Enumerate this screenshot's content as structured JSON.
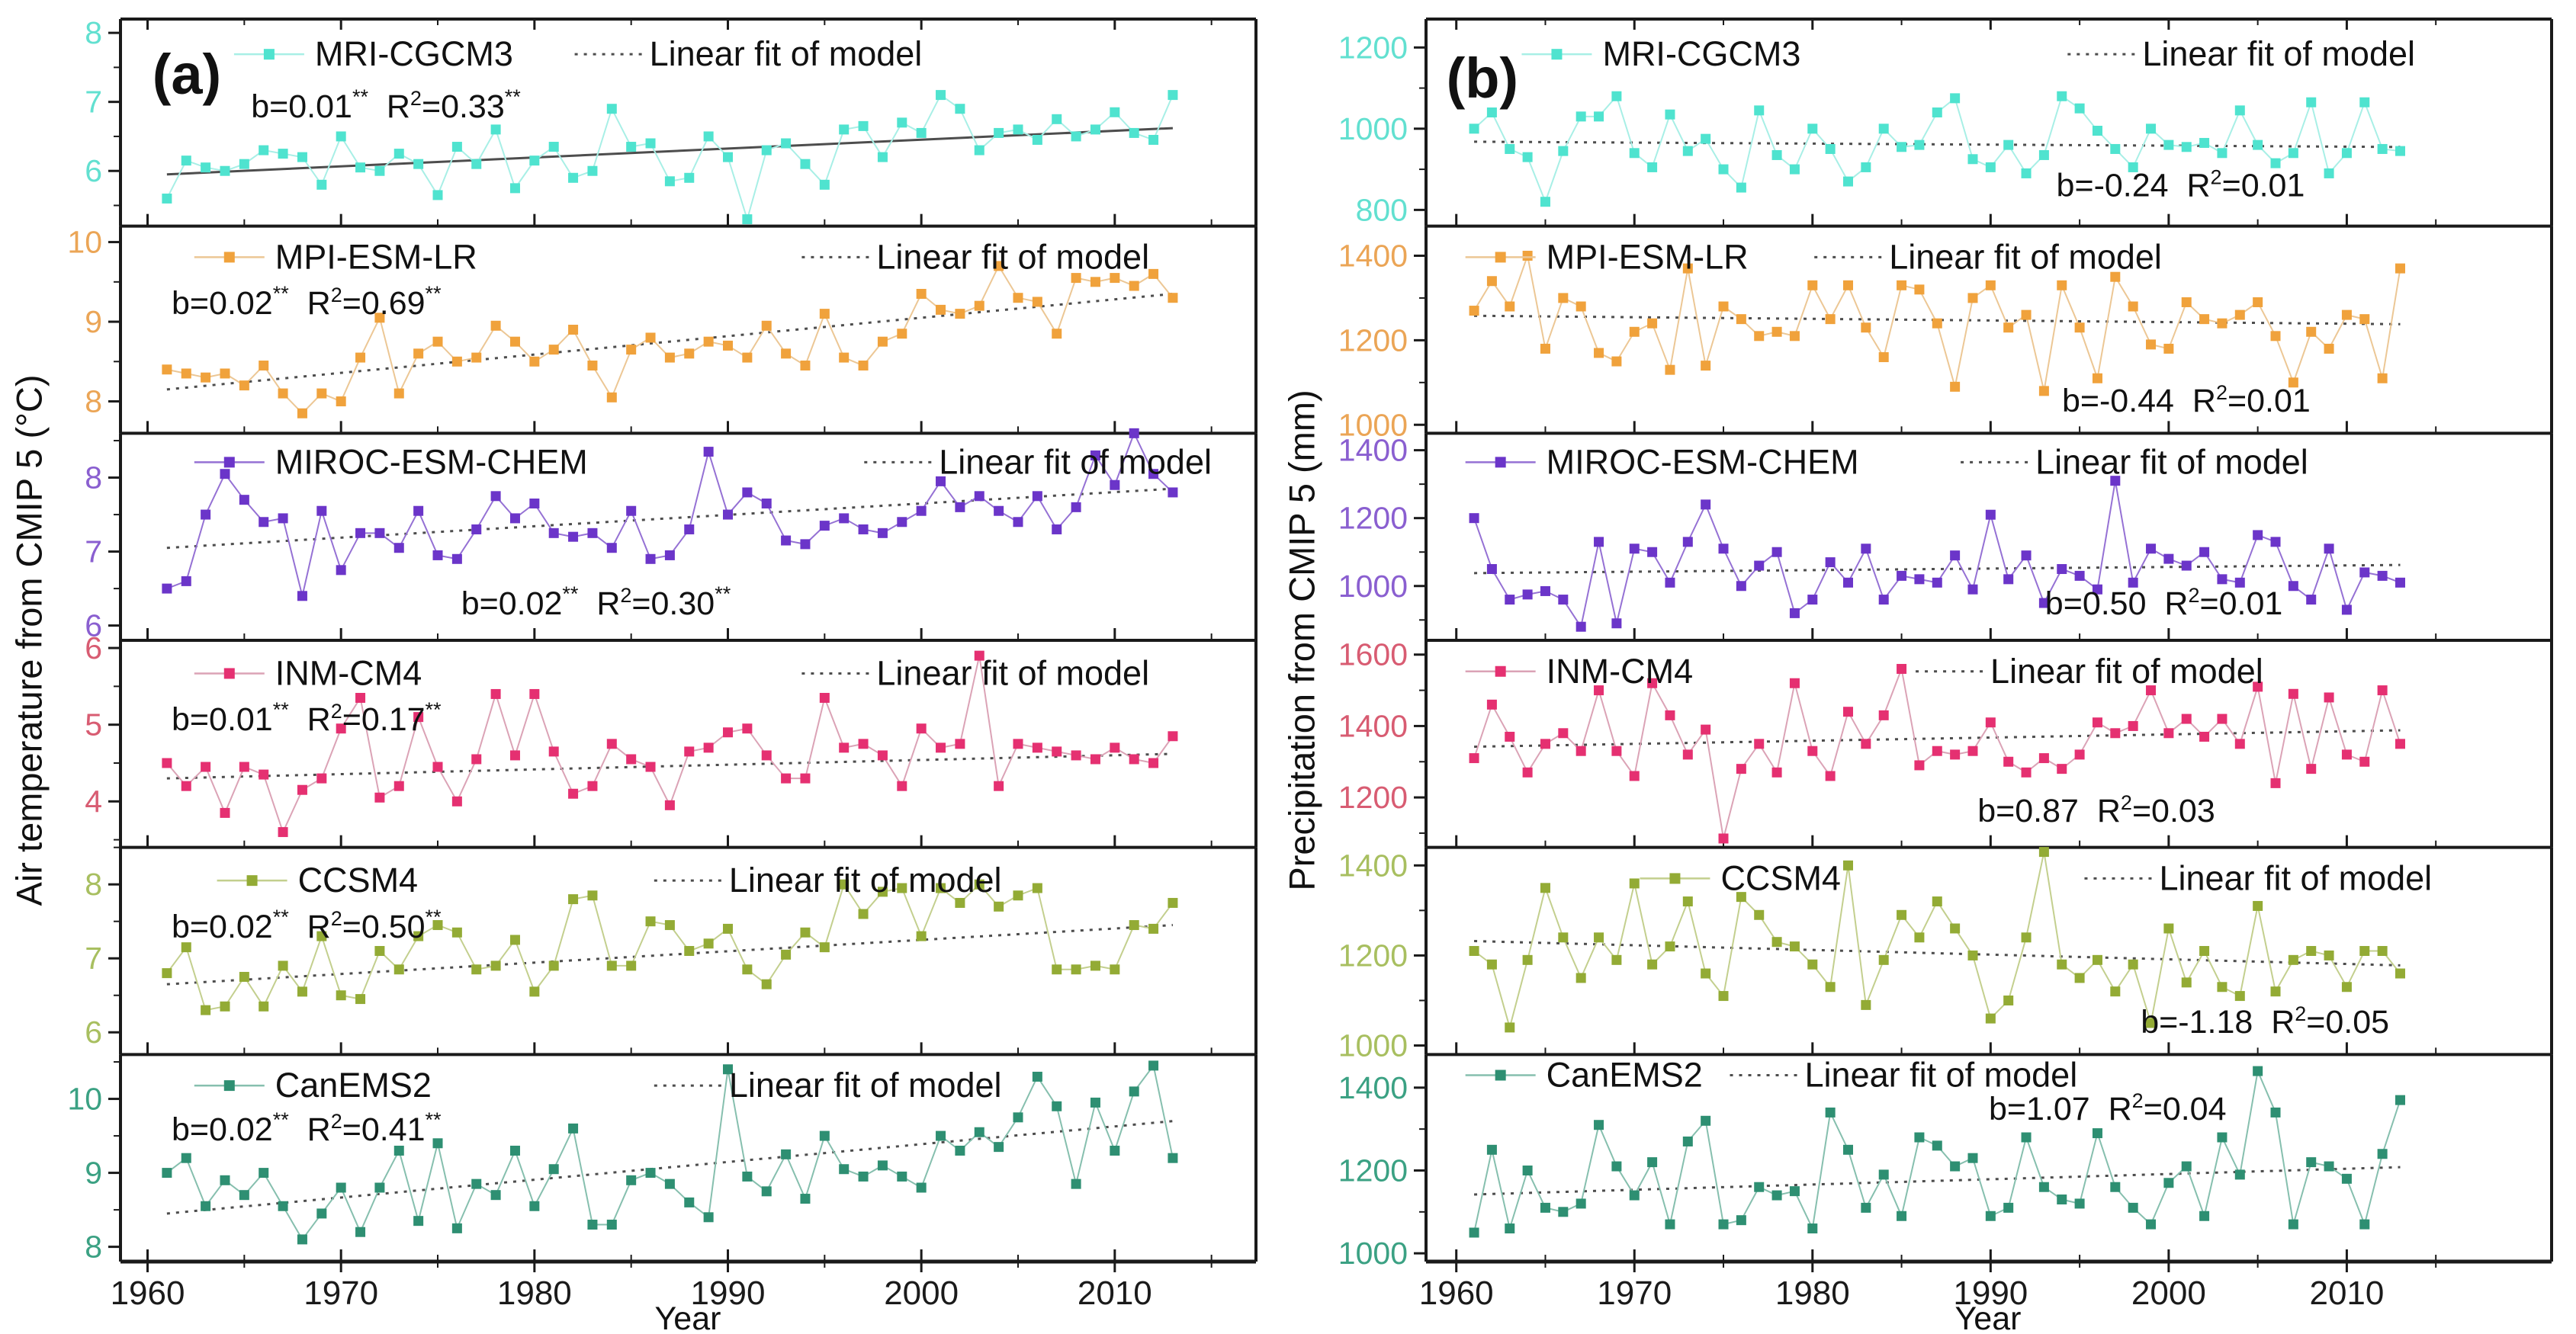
{
  "figure": {
    "fit_legend_label": "Linear fit of model",
    "frame_color": "#1a1a1a",
    "fit_color": "#4d4d4d",
    "panels": [
      {
        "id": "a",
        "label": "(a)",
        "y_axis_label": "Air temperature from CMIP 5 (°C)",
        "x_axis_label": "Year",
        "xlim": [
          1958.6,
          2017.3
        ],
        "xticks": [
          1960,
          1970,
          1980,
          1990,
          2000,
          2010
        ],
        "x_minor_step": 5
      },
      {
        "id": "b",
        "label": "(b)",
        "y_axis_label": "Precipitation from CMIP 5 (mm)",
        "x_axis_label": "Year",
        "xlim": [
          1958.3,
          2021.5
        ],
        "xticks": [
          1960,
          1970,
          1980,
          1990,
          2000,
          2010
        ],
        "x_minor_step": 5
      }
    ]
  },
  "chart_data": [
    {
      "panel": "a",
      "type": "line",
      "model": "MRI-CGCM3",
      "color": "#4fe3cf",
      "line_color": "#a8efe6",
      "tick_label_color": "#62e0d0",
      "panel_label": "(a)",
      "panel_label_pos": [
        0.028,
        0.36
      ],
      "x_start_year": 1961,
      "ylim": [
        5.2,
        8.2
      ],
      "yticks": [
        6,
        7,
        8
      ],
      "y_minor_step": 0.5,
      "values": [
        5.6,
        6.15,
        6.05,
        6.0,
        6.1,
        6.3,
        6.25,
        6.2,
        5.8,
        6.5,
        6.05,
        6.0,
        6.25,
        6.1,
        5.65,
        6.35,
        6.1,
        6.6,
        5.75,
        6.15,
        6.35,
        5.9,
        6.0,
        6.9,
        6.35,
        6.4,
        5.85,
        5.9,
        6.5,
        6.2,
        5.3,
        6.3,
        6.4,
        6.1,
        5.8,
        6.6,
        6.65,
        6.2,
        6.7,
        6.55,
        7.1,
        6.9,
        6.3,
        6.55,
        6.6,
        6.45,
        6.75,
        6.5,
        6.6,
        6.85,
        6.55,
        6.45,
        7.1
      ],
      "fit_line": [
        5.95,
        6.62
      ],
      "fit_solid": true,
      "stats": {
        "b_value": "b=0.01",
        "b_stars": "**",
        "r2_base": "R",
        "r2_exp": "2",
        "r2_value": "=0.33",
        "r2_stars": "**",
        "x": 0.115,
        "y": 0.42
      },
      "legend": {
        "series_x": 0.1,
        "fit_x": 0.4,
        "y": 0.17
      }
    },
    {
      "panel": "a",
      "type": "line",
      "model": "MPI-ESM-LR",
      "color": "#f0a23c",
      "line_color": "#ecc795",
      "tick_label_color": "#eba556",
      "x_start_year": 1961,
      "ylim": [
        7.6,
        10.2
      ],
      "yticks": [
        8,
        9,
        10
      ],
      "y_minor_step": 0.5,
      "values": [
        8.4,
        8.35,
        8.3,
        8.35,
        8.2,
        8.45,
        8.1,
        7.85,
        8.1,
        8.0,
        8.55,
        9.05,
        8.1,
        8.6,
        8.75,
        8.5,
        8.55,
        8.95,
        8.75,
        8.5,
        8.65,
        8.9,
        8.45,
        8.05,
        8.65,
        8.8,
        8.55,
        8.6,
        8.75,
        8.7,
        8.55,
        8.95,
        8.6,
        8.45,
        9.1,
        8.55,
        8.45,
        8.75,
        8.85,
        9.35,
        9.15,
        9.1,
        9.2,
        9.7,
        9.3,
        9.25,
        8.85,
        9.55,
        9.5,
        9.55,
        9.45,
        9.6,
        9.3
      ],
      "fit_line": [
        8.15,
        9.35
      ],
      "fit_solid": false,
      "stats": {
        "b_value": "b=0.02",
        "b_stars": "**",
        "r2_base": "R",
        "r2_exp": "2",
        "r2_value": "=0.69",
        "r2_stars": "**",
        "x": 0.045,
        "y": 0.37
      },
      "legend": {
        "series_x": 0.065,
        "fit_x": 0.6,
        "y": 0.15
      }
    },
    {
      "panel": "a",
      "type": "line",
      "model": "MIROC-ESM-CHEM",
      "color": "#6b35c9",
      "line_color": "#9571d4",
      "tick_label_color": "#8a5fd0",
      "x_start_year": 1961,
      "ylim": [
        5.8,
        8.6
      ],
      "yticks": [
        6,
        7,
        8
      ],
      "y_minor_step": 0.5,
      "values": [
        6.5,
        6.6,
        7.5,
        8.05,
        7.7,
        7.4,
        7.45,
        6.4,
        7.55,
        6.75,
        7.25,
        7.25,
        7.05,
        7.55,
        6.95,
        6.9,
        7.3,
        7.75,
        7.45,
        7.65,
        7.25,
        7.2,
        7.25,
        7.05,
        7.55,
        6.9,
        6.95,
        7.3,
        8.35,
        7.5,
        7.8,
        7.65,
        7.15,
        7.1,
        7.35,
        7.45,
        7.3,
        7.25,
        7.4,
        7.55,
        7.95,
        7.6,
        7.75,
        7.55,
        7.4,
        7.75,
        7.3,
        7.6,
        8.3,
        7.9,
        8.6,
        8.05,
        7.8
      ],
      "fit_line": [
        7.05,
        7.85
      ],
      "fit_solid": false,
      "stats": {
        "b_value": "b=0.02",
        "b_stars": "**",
        "r2_base": "R",
        "r2_exp": "2",
        "r2_value": "=0.30",
        "r2_stars": "**",
        "x": 0.3,
        "y": 0.82
      },
      "legend": {
        "series_x": 0.065,
        "fit_x": 0.655,
        "y": 0.14
      }
    },
    {
      "panel": "a",
      "type": "line",
      "model": "INM-CM4",
      "color": "#e53071",
      "line_color": "#dba3b6",
      "tick_label_color": "#d85c72",
      "x_start_year": 1961,
      "ylim": [
        3.4,
        6.1
      ],
      "yticks": [
        4,
        5,
        6
      ],
      "y_minor_step": 0.5,
      "values": [
        4.5,
        4.2,
        4.45,
        3.85,
        4.45,
        4.35,
        3.6,
        4.15,
        4.3,
        4.95,
        5.35,
        4.05,
        4.2,
        5.1,
        4.45,
        4.0,
        4.55,
        5.4,
        4.6,
        5.4,
        4.65,
        4.1,
        4.2,
        4.75,
        4.55,
        4.45,
        3.95,
        4.65,
        4.7,
        4.9,
        4.95,
        4.6,
        4.3,
        4.3,
        5.35,
        4.7,
        4.75,
        4.6,
        4.2,
        4.95,
        4.7,
        4.75,
        5.9,
        4.2,
        4.75,
        4.7,
        4.65,
        4.6,
        4.55,
        4.7,
        4.55,
        4.5,
        4.85
      ],
      "fit_line": [
        4.3,
        4.62
      ],
      "fit_solid": false,
      "stats": {
        "b_value": "b=0.01",
        "b_stars": "**",
        "r2_base": "R",
        "r2_exp": "2",
        "r2_value": "=0.17",
        "r2_stars": "**",
        "x": 0.045,
        "y": 0.38
      },
      "legend": {
        "series_x": 0.065,
        "fit_x": 0.6,
        "y": 0.16
      }
    },
    {
      "panel": "a",
      "type": "line",
      "model": "CCSM4",
      "color": "#93ab35",
      "line_color": "#c3cf8e",
      "tick_label_color": "#a8bf60",
      "x_start_year": 1961,
      "ylim": [
        5.7,
        8.5
      ],
      "yticks": [
        6,
        7,
        8
      ],
      "y_minor_step": 0.5,
      "values": [
        6.8,
        7.15,
        6.3,
        6.35,
        6.75,
        6.35,
        6.9,
        6.55,
        7.3,
        6.5,
        6.45,
        7.1,
        6.85,
        7.3,
        7.45,
        7.35,
        6.85,
        6.9,
        7.25,
        6.55,
        6.9,
        7.8,
        7.85,
        6.9,
        6.9,
        7.5,
        7.45,
        7.1,
        7.2,
        7.4,
        6.85,
        6.65,
        7.05,
        7.35,
        7.15,
        8.0,
        7.6,
        7.9,
        7.95,
        7.3,
        7.95,
        7.75,
        8.0,
        7.7,
        7.85,
        7.95,
        6.85,
        6.85,
        6.9,
        6.85,
        7.45,
        7.4,
        7.75
      ],
      "fit_line": [
        6.65,
        7.45
      ],
      "fit_solid": false,
      "stats": {
        "b_value": "b=0.02",
        "b_stars": "**",
        "r2_base": "R",
        "r2_exp": "2",
        "r2_value": "=0.50",
        "r2_stars": "**",
        "x": 0.045,
        "y": 0.38
      },
      "legend": {
        "series_x": 0.085,
        "fit_x": 0.47,
        "y": 0.16
      }
    },
    {
      "panel": "a",
      "type": "line",
      "model": "CanEMS2",
      "color": "#2e8f72",
      "line_color": "#86bfae",
      "tick_label_color": "#3ba183",
      "x_start_year": 1961,
      "ylim": [
        7.8,
        10.6
      ],
      "yticks": [
        8,
        9,
        10
      ],
      "y_minor_step": 0.5,
      "values": [
        9.0,
        9.2,
        8.55,
        8.9,
        8.7,
        9.0,
        8.55,
        8.1,
        8.45,
        8.8,
        8.2,
        8.8,
        9.3,
        8.35,
        9.4,
        8.25,
        8.85,
        8.7,
        9.3,
        8.55,
        9.05,
        9.6,
        8.3,
        8.3,
        8.9,
        9.0,
        8.85,
        8.6,
        8.4,
        10.4,
        8.95,
        8.75,
        9.25,
        8.65,
        9.5,
        9.05,
        8.95,
        9.1,
        8.95,
        8.8,
        9.5,
        9.3,
        9.55,
        9.35,
        9.75,
        10.3,
        9.9,
        8.85,
        9.95,
        9.3,
        10.1,
        10.45,
        9.2
      ],
      "fit_line": [
        8.45,
        9.7
      ],
      "fit_solid": false,
      "stats": {
        "b_value": "b=0.02",
        "b_stars": "**",
        "r2_base": "R",
        "r2_exp": "2",
        "r2_value": "=0.41",
        "r2_stars": "**",
        "x": 0.045,
        "y": 0.36
      },
      "legend": {
        "series_x": 0.065,
        "fit_x": 0.47,
        "y": 0.15
      }
    },
    {
      "panel": "b",
      "type": "line",
      "model": "MRI-CGCM3",
      "color": "#4fe3cf",
      "line_color": "#a8efe6",
      "tick_label_color": "#62e0d0",
      "panel_label": "(b)",
      "panel_label_pos": [
        0.018,
        0.38
      ],
      "x_start_year": 1961,
      "ylim": [
        760,
        1270
      ],
      "yticks": [
        800,
        1000,
        1200
      ],
      "y_minor_step": 100,
      "values": [
        1000,
        1040,
        950,
        930,
        820,
        945,
        1030,
        1030,
        1080,
        940,
        905,
        1035,
        945,
        975,
        900,
        855,
        1045,
        935,
        900,
        1000,
        950,
        870,
        905,
        1000,
        955,
        960,
        1040,
        1075,
        925,
        905,
        960,
        890,
        935,
        1080,
        1050,
        995,
        950,
        905,
        1000,
        960,
        955,
        965,
        940,
        1045,
        960,
        915,
        940,
        1065,
        890,
        940,
        1065,
        950,
        945
      ],
      "fit_line": [
        968,
        955
      ],
      "fit_solid": false,
      "stats": {
        "b_value": "b=-0.24",
        "b_stars": "",
        "r2_base": "R",
        "r2_exp": "2",
        "r2_value": "=0.01",
        "r2_stars": "",
        "x": 0.56,
        "y": 0.8
      },
      "legend": {
        "series_x": 0.085,
        "fit_x": 0.57,
        "y": 0.17
      }
    },
    {
      "panel": "b",
      "type": "line",
      "model": "MPI-ESM-LR",
      "color": "#f0a23c",
      "line_color": "#ecc795",
      "tick_label_color": "#eba556",
      "x_start_year": 1961,
      "ylim": [
        980,
        1470
      ],
      "yticks": [
        1000,
        1200,
        1400
      ],
      "y_minor_step": 100,
      "values": [
        1270,
        1340,
        1280,
        1400,
        1180,
        1300,
        1280,
        1170,
        1150,
        1220,
        1240,
        1130,
        1370,
        1140,
        1280,
        1250,
        1210,
        1220,
        1210,
        1330,
        1250,
        1330,
        1230,
        1160,
        1330,
        1320,
        1240,
        1090,
        1300,
        1330,
        1230,
        1260,
        1080,
        1330,
        1230,
        1110,
        1350,
        1280,
        1190,
        1180,
        1290,
        1250,
        1240,
        1260,
        1290,
        1210,
        1100,
        1220,
        1180,
        1260,
        1250,
        1110,
        1370
      ],
      "fit_line": [
        1258,
        1238
      ],
      "fit_solid": false,
      "stats": {
        "b_value": "b=-0.44",
        "b_stars": "",
        "r2_base": "R",
        "r2_exp": "2",
        "r2_value": "=0.01",
        "r2_stars": "",
        "x": 0.565,
        "y": 0.84
      },
      "legend": {
        "series_x": 0.035,
        "fit_x": 0.345,
        "y": 0.15
      }
    },
    {
      "panel": "b",
      "type": "line",
      "model": "MIROC-ESM-CHEM",
      "color": "#6b35c9",
      "line_color": "#9571d4",
      "tick_label_color": "#8a5fd0",
      "x_start_year": 1961,
      "ylim": [
        840,
        1450
      ],
      "yticks": [
        1000,
        1200,
        1400
      ],
      "y_minor_step": 100,
      "values": [
        1200,
        1050,
        960,
        975,
        985,
        960,
        880,
        1130,
        890,
        1110,
        1100,
        1010,
        1130,
        1240,
        1110,
        1000,
        1060,
        1100,
        920,
        960,
        1070,
        1010,
        1110,
        960,
        1030,
        1020,
        1010,
        1090,
        990,
        1210,
        1020,
        1090,
        950,
        1050,
        1030,
        990,
        1310,
        1010,
        1110,
        1080,
        1060,
        1100,
        1020,
        1010,
        1150,
        1130,
        1000,
        960,
        1110,
        930,
        1040,
        1030,
        1010
      ],
      "fit_line": [
        1038,
        1062
      ],
      "fit_solid": false,
      "stats": {
        "b_value": "b=0.50",
        "b_stars": "",
        "r2_base": "R",
        "r2_exp": "2",
        "r2_value": "=0.01",
        "r2_stars": "",
        "x": 0.55,
        "y": 0.82
      },
      "legend": {
        "series_x": 0.035,
        "fit_x": 0.475,
        "y": 0.14
      }
    },
    {
      "panel": "b",
      "type": "line",
      "model": "INM-CM4",
      "color": "#e53071",
      "line_color": "#dba3b6",
      "tick_label_color": "#d85c72",
      "x_start_year": 1961,
      "ylim": [
        1060,
        1640
      ],
      "yticks": [
        1200,
        1400,
        1600
      ],
      "y_minor_step": 100,
      "values": [
        1310,
        1460,
        1370,
        1270,
        1350,
        1380,
        1330,
        1500,
        1330,
        1260,
        1520,
        1430,
        1320,
        1390,
        1085,
        1280,
        1350,
        1270,
        1520,
        1330,
        1260,
        1440,
        1350,
        1430,
        1560,
        1290,
        1330,
        1320,
        1330,
        1410,
        1300,
        1270,
        1310,
        1280,
        1320,
        1410,
        1380,
        1400,
        1500,
        1380,
        1420,
        1370,
        1420,
        1350,
        1510,
        1240,
        1490,
        1280,
        1480,
        1320,
        1300,
        1500,
        1350
      ],
      "fit_line": [
        1342,
        1388
      ],
      "fit_solid": false,
      "stats": {
        "b_value": "b=0.87",
        "b_stars": "",
        "r2_base": "R",
        "r2_exp": "2",
        "r2_value": "=0.03",
        "r2_stars": "",
        "x": 0.49,
        "y": 0.82
      },
      "legend": {
        "series_x": 0.035,
        "fit_x": 0.435,
        "y": 0.15
      }
    },
    {
      "panel": "b",
      "type": "line",
      "model": "CCSM4",
      "color": "#93ab35",
      "line_color": "#c3cf8e",
      "tick_label_color": "#a8bf60",
      "x_start_year": 1961,
      "ylim": [
        980,
        1440
      ],
      "yticks": [
        1000,
        1200,
        1400
      ],
      "y_minor_step": 100,
      "values": [
        1210,
        1180,
        1040,
        1190,
        1350,
        1240,
        1150,
        1240,
        1190,
        1360,
        1180,
        1220,
        1320,
        1160,
        1110,
        1330,
        1290,
        1230,
        1220,
        1180,
        1130,
        1400,
        1090,
        1190,
        1290,
        1240,
        1320,
        1260,
        1200,
        1060,
        1100,
        1240,
        1430,
        1180,
        1150,
        1190,
        1120,
        1180,
        1050,
        1260,
        1140,
        1210,
        1130,
        1110,
        1310,
        1120,
        1190,
        1210,
        1200,
        1130,
        1210,
        1210,
        1160
      ],
      "fit_line": [
        1232,
        1178
      ],
      "fit_solid": false,
      "stats": {
        "b_value": "b=-1.18",
        "b_stars": "",
        "r2_base": "R",
        "r2_exp": "2",
        "r2_value": "=0.05",
        "r2_stars": "",
        "x": 0.635,
        "y": 0.84
      },
      "legend": {
        "series_x": 0.19,
        "fit_x": 0.585,
        "y": 0.15
      }
    },
    {
      "panel": "b",
      "type": "line",
      "model": "CanEMS2",
      "color": "#2e8f72",
      "line_color": "#86bfae",
      "tick_label_color": "#3ba183",
      "x_start_year": 1961,
      "ylim": [
        980,
        1480
      ],
      "yticks": [
        1000,
        1200,
        1400
      ],
      "y_minor_step": 100,
      "values": [
        1050,
        1250,
        1060,
        1200,
        1110,
        1100,
        1120,
        1310,
        1210,
        1140,
        1220,
        1070,
        1270,
        1320,
        1070,
        1080,
        1160,
        1140,
        1150,
        1060,
        1340,
        1250,
        1110,
        1190,
        1090,
        1280,
        1260,
        1210,
        1230,
        1090,
        1110,
        1280,
        1160,
        1130,
        1120,
        1290,
        1160,
        1110,
        1070,
        1170,
        1210,
        1090,
        1280,
        1190,
        1440,
        1340,
        1070,
        1220,
        1210,
        1180,
        1070,
        1240,
        1370
      ],
      "fit_line": [
        1142,
        1208
      ],
      "fit_solid": false,
      "stats": {
        "b_value": "b=1.07",
        "b_stars": "",
        "r2_base": "R",
        "r2_exp": "2",
        "r2_value": "=0.04",
        "r2_stars": "",
        "x": 0.5,
        "y": 0.26
      },
      "legend": {
        "series_x": 0.035,
        "fit_x": 0.27,
        "y": 0.1
      }
    }
  ]
}
